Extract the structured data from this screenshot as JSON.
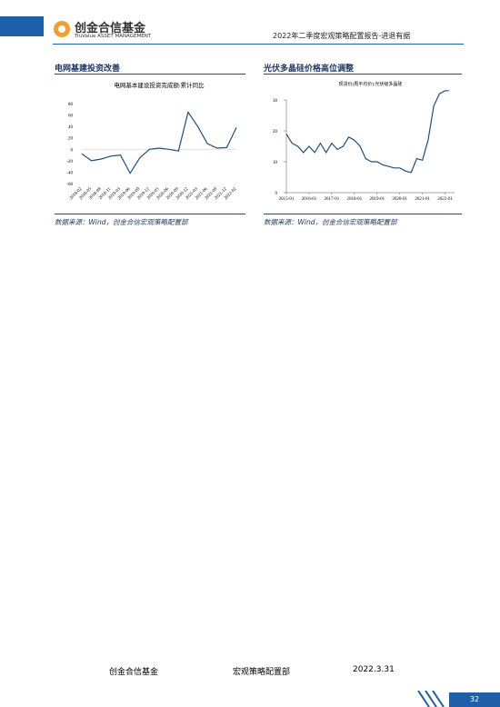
{
  "header": {
    "company": "创金合信基金",
    "company_en": "TruValue ASSET MANAGEMENT",
    "report_title": "2022年二季度宏观策略配置报告-进退有据"
  },
  "sections": [
    {
      "heading": "电网基建投资改善",
      "source": "数据来源：Wind，创金合信宏观策略配置部"
    },
    {
      "heading": "光伏多晶硅价格高位调整",
      "source": "数据来源：Wind，创金合信宏观策略配置部"
    }
  ],
  "chart_data": [
    {
      "type": "line",
      "title": "电网基本建设投资完成额:累计同比",
      "categories": [
        "2018-02",
        "2018-05",
        "2018-08",
        "2018-11",
        "2019-03",
        "2019-06",
        "2019-09",
        "2019-12",
        "2020-03",
        "2020-06",
        "2020-09",
        "2020-12",
        "2021-03",
        "2021-06",
        "2021-09",
        "2021-12",
        "2022-02"
      ],
      "series": [
        {
          "color": "#1f4e79",
          "values": [
            -8,
            -20,
            -17,
            -12,
            -10,
            -42,
            -15,
            0,
            2,
            0,
            -3,
            65,
            40,
            10,
            2,
            3,
            38
          ]
        }
      ],
      "ylim": [
        -60,
        80
      ],
      "yticks": [
        -60,
        -40,
        -20,
        0,
        20,
        40,
        60,
        80
      ]
    },
    {
      "type": "line",
      "title": "现货价(周平均价):光伏级多晶硅",
      "x": [
        "2015-01",
        "2015-04",
        "2015-07",
        "2015-10",
        "2016-01",
        "2016-04",
        "2016-07",
        "2016-10",
        "2017-01",
        "2017-04",
        "2017-07",
        "2017-10",
        "2018-01",
        "2018-04",
        "2018-07",
        "2018-10",
        "2019-01",
        "2019-04",
        "2019-07",
        "2019-10",
        "2020-01",
        "2020-04",
        "2020-07",
        "2020-10",
        "2021-01",
        "2021-04",
        "2021-07",
        "2021-10",
        "2022-01",
        "2022-03"
      ],
      "series": [
        {
          "color": "#1f4e79",
          "values": [
            19,
            16,
            15,
            13,
            15,
            13,
            16,
            13,
            16,
            14,
            15,
            18,
            17,
            15,
            11,
            10,
            10,
            9,
            8.5,
            8,
            8,
            7,
            6.5,
            11,
            10.5,
            17,
            28,
            32,
            33,
            33
          ]
        }
      ],
      "xlim": [
        "2015-01",
        "2022-06"
      ],
      "xticks": [
        "2015-01",
        "2016-01",
        "2017-01",
        "2018-01",
        "2019-01",
        "2020-01",
        "2021-01",
        "2022-01"
      ],
      "ylim": [
        0,
        30
      ],
      "yticks": [
        0,
        10,
        20,
        30
      ]
    }
  ],
  "footer": {
    "company": "创金合信基金",
    "department": "宏观策略配置部",
    "date": "2022.3.31",
    "page": "32"
  }
}
